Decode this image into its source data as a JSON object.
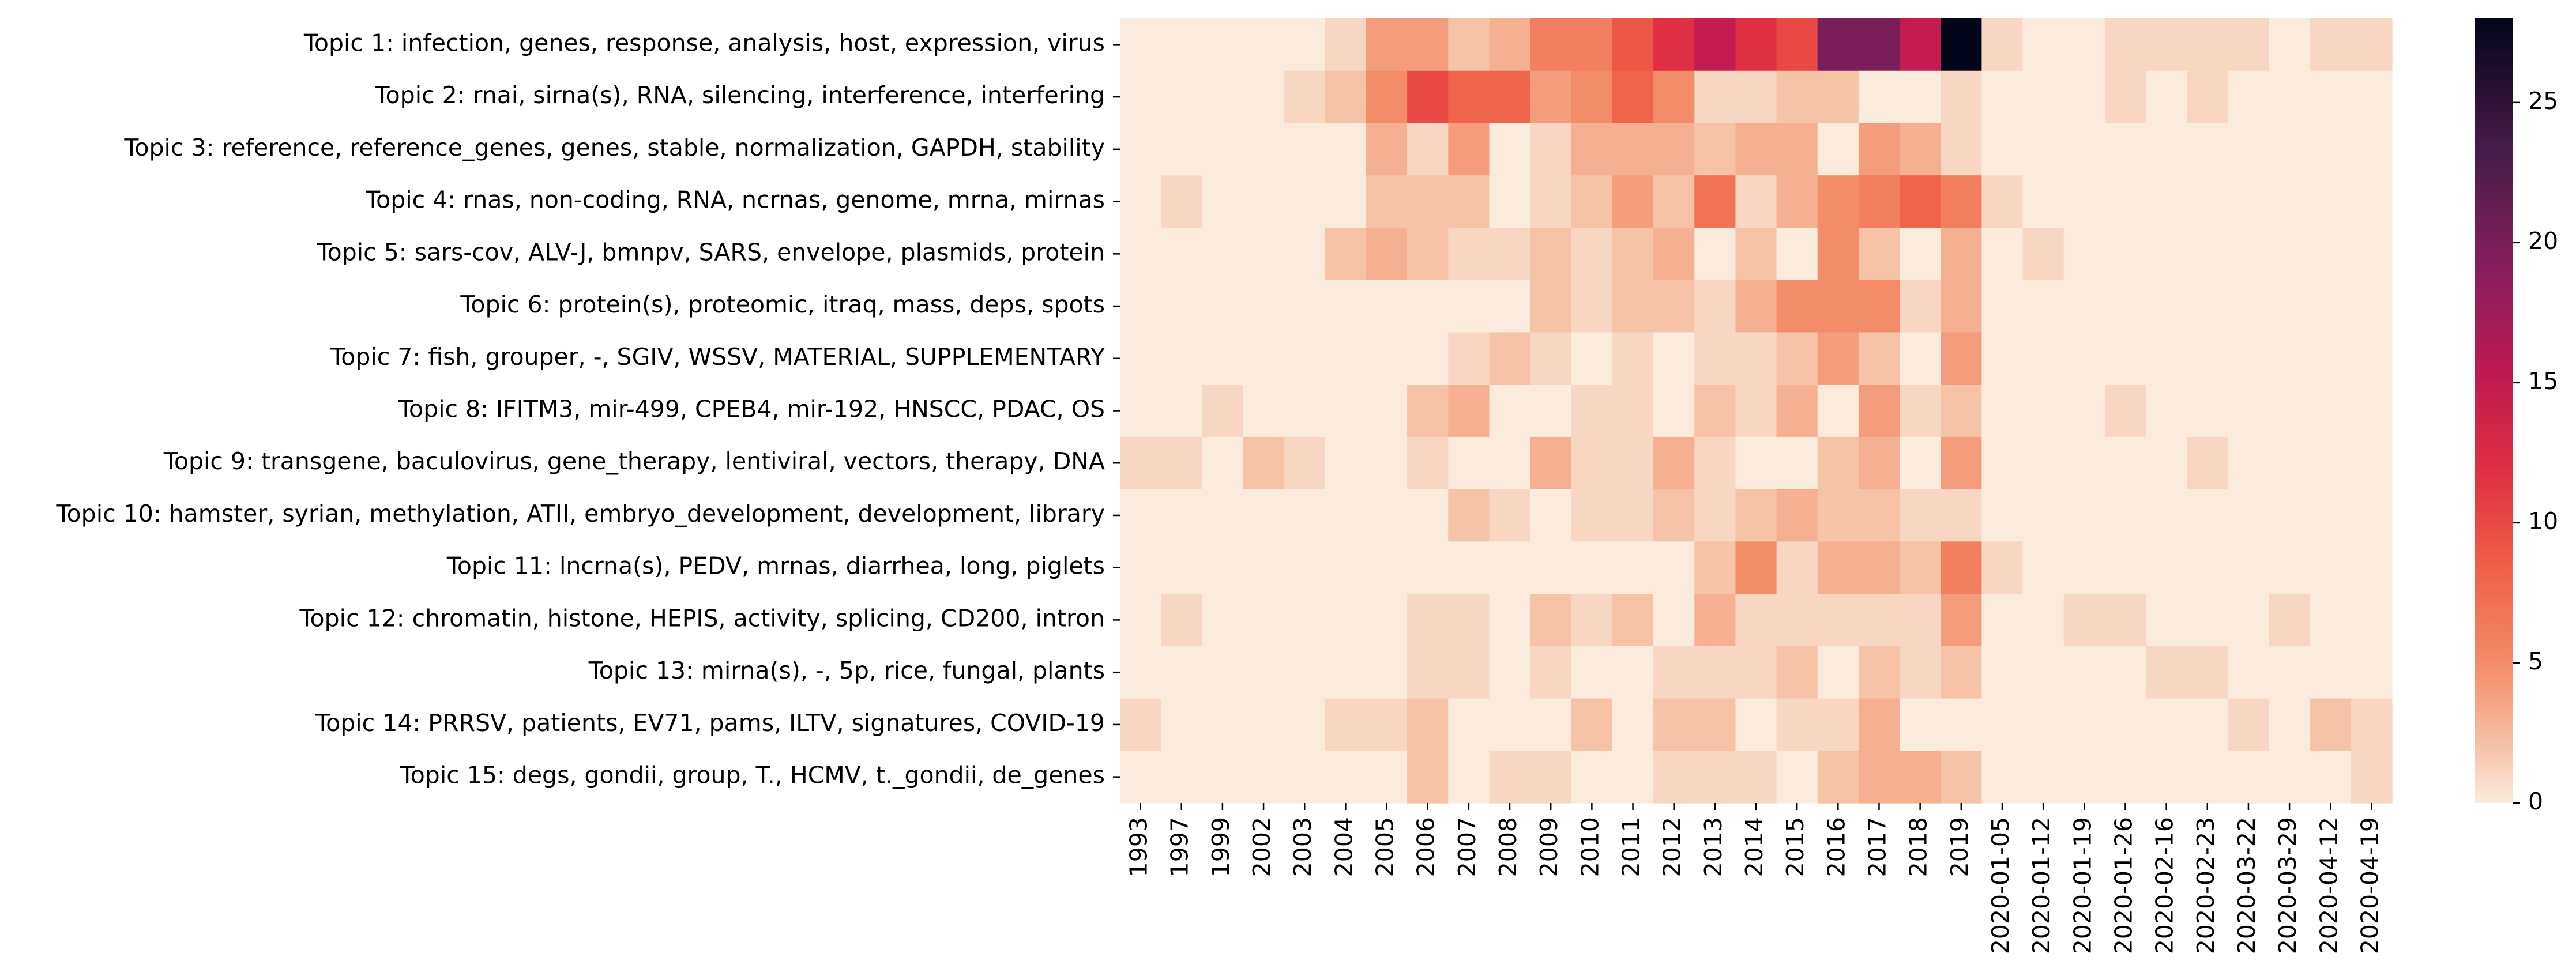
{
  "chart_data": {
    "type": "heatmap",
    "title": "",
    "xlabel": "",
    "ylabel": "",
    "x_categories": [
      "1993",
      "1997",
      "1999",
      "2002",
      "2003",
      "2004",
      "2005",
      "2006",
      "2007",
      "2008",
      "2009",
      "2010",
      "2011",
      "2012",
      "2013",
      "2014",
      "2015",
      "2016",
      "2017",
      "2018",
      "2019",
      "2020-01-05",
      "2020-01-12",
      "2020-01-19",
      "2020-01-26",
      "2020-02-16",
      "2020-02-23",
      "2020-03-22",
      "2020-03-29",
      "2020-04-12",
      "2020-04-19"
    ],
    "y_categories": [
      "Topic 1: infection, genes, response, analysis, host, expression, virus",
      "Topic 2: rnai, sirna(s), RNA, silencing, interference, interfering",
      "Topic 3: reference, reference_genes, genes, stable, normalization, GAPDH, stability",
      "Topic 4: rnas, non-coding, RNA, ncrnas, genome, mrna, mirnas",
      "Topic 5: sars-cov, ALV-J, bmnpv, SARS, envelope, plasmids, protein",
      "Topic 6: protein(s), proteomic, itraq, mass, deps, spots",
      "Topic 7: fish, grouper, -, SGIV, WSSV, MATERIAL, SUPPLEMENTARY",
      "Topic 8: IFITM3, mir-499, CPEB4, mir-192, HNSCC, PDAC, OS",
      "Topic 9: transgene, baculovirus, gene_therapy, lentiviral, vectors, therapy, DNA",
      "Topic 10: hamster, syrian, methylation, ATII, embryo_development, development, library",
      "Topic 11: lncrna(s), PEDV, mrnas, diarrhea, long, piglets",
      "Topic 12: chromatin, histone, HEPIS, activity, splicing, CD200, intron",
      "Topic 13: mirna(s), -, 5p, rice, fungal, plants",
      "Topic 14: PRRSV, patients, EV71, pams, ILTV, signatures, COVID-19",
      "Topic 15: degs, gondii, group, T., HCMV, t._gondii, de_genes"
    ],
    "values": [
      [
        0,
        0,
        0,
        0,
        0,
        1,
        4,
        4,
        2,
        3,
        6,
        6,
        9,
        12,
        15,
        12,
        10,
        20,
        20,
        15,
        28,
        1,
        0,
        0,
        1,
        1,
        1,
        1,
        0,
        1,
        1
      ],
      [
        0,
        0,
        0,
        0,
        1,
        2,
        5,
        10,
        8,
        8,
        4,
        5,
        8,
        5,
        1,
        1,
        2,
        2,
        0,
        0,
        1,
        0,
        0,
        0,
        1,
        0,
        1,
        0,
        0,
        0,
        0
      ],
      [
        0,
        0,
        0,
        0,
        0,
        0,
        3,
        1,
        4,
        0,
        1,
        3,
        3,
        3,
        2,
        3,
        3,
        0,
        4,
        3,
        1,
        0,
        0,
        0,
        0,
        0,
        0,
        0,
        0,
        0,
        0
      ],
      [
        0,
        1,
        0,
        0,
        0,
        0,
        2,
        2,
        2,
        0,
        1,
        2,
        4,
        2,
        7,
        1,
        3,
        5,
        6,
        8,
        6,
        1,
        0,
        0,
        0,
        0,
        0,
        0,
        0,
        0,
        0
      ],
      [
        0,
        0,
        0,
        0,
        0,
        2,
        3,
        2,
        1,
        1,
        2,
        1,
        2,
        3,
        0,
        2,
        0,
        5,
        2,
        0,
        3,
        0,
        1,
        0,
        0,
        0,
        0,
        0,
        0,
        0,
        0
      ],
      [
        0,
        0,
        0,
        0,
        0,
        0,
        0,
        0,
        0,
        0,
        2,
        1,
        2,
        2,
        1,
        3,
        5,
        5,
        5,
        1,
        3,
        0,
        0,
        0,
        0,
        0,
        0,
        0,
        0,
        0,
        0
      ],
      [
        0,
        0,
        0,
        0,
        0,
        0,
        0,
        0,
        1,
        2,
        1,
        0,
        1,
        0,
        1,
        1,
        2,
        4,
        2,
        0,
        4,
        0,
        0,
        0,
        0,
        0,
        0,
        0,
        0,
        0,
        0
      ],
      [
        0,
        0,
        1,
        0,
        0,
        0,
        0,
        2,
        3,
        0,
        0,
        1,
        1,
        0,
        2,
        1,
        3,
        0,
        4,
        1,
        2,
        0,
        0,
        0,
        1,
        0,
        0,
        0,
        0,
        0,
        0
      ],
      [
        1,
        1,
        0,
        2,
        1,
        0,
        0,
        1,
        0,
        0,
        3,
        1,
        1,
        3,
        1,
        0,
        0,
        2,
        3,
        0,
        4,
        0,
        0,
        0,
        0,
        0,
        1,
        0,
        0,
        0,
        0
      ],
      [
        0,
        0,
        0,
        0,
        0,
        0,
        0,
        0,
        2,
        1,
        0,
        1,
        1,
        2,
        1,
        2,
        3,
        2,
        2,
        1,
        1,
        0,
        0,
        0,
        0,
        0,
        0,
        0,
        0,
        0,
        0
      ],
      [
        0,
        0,
        0,
        0,
        0,
        0,
        0,
        0,
        0,
        0,
        0,
        0,
        0,
        0,
        2,
        5,
        1,
        3,
        3,
        2,
        6,
        1,
        0,
        0,
        0,
        0,
        0,
        0,
        0,
        0,
        0
      ],
      [
        0,
        1,
        0,
        0,
        0,
        0,
        0,
        1,
        1,
        0,
        2,
        1,
        2,
        0,
        3,
        1,
        1,
        1,
        1,
        1,
        4,
        0,
        0,
        1,
        1,
        0,
        0,
        0,
        1,
        0,
        0
      ],
      [
        0,
        0,
        0,
        0,
        0,
        0,
        0,
        1,
        1,
        0,
        1,
        0,
        0,
        1,
        1,
        1,
        2,
        0,
        2,
        1,
        2,
        0,
        0,
        0,
        0,
        1,
        1,
        0,
        0,
        0,
        0
      ],
      [
        1,
        0,
        0,
        0,
        0,
        1,
        1,
        2,
        0,
        0,
        0,
        2,
        0,
        2,
        2,
        0,
        1,
        1,
        3,
        0,
        0,
        0,
        0,
        0,
        0,
        0,
        0,
        1,
        0,
        2,
        1
      ],
      [
        0,
        0,
        0,
        0,
        0,
        0,
        0,
        2,
        0,
        1,
        1,
        0,
        0,
        1,
        1,
        1,
        0,
        2,
        3,
        3,
        2,
        0,
        0,
        0,
        0,
        0,
        0,
        0,
        0,
        0,
        1
      ]
    ],
    "colorbar": {
      "colormap": "rocket",
      "vmin": 0,
      "vmax": 28,
      "ticks": [
        0,
        5,
        10,
        15,
        20,
        25
      ],
      "tick_labels": [
        "0",
        "5",
        "10",
        "15",
        "20",
        "25"
      ]
    },
    "grid": false,
    "legend": "colorbar-right"
  }
}
